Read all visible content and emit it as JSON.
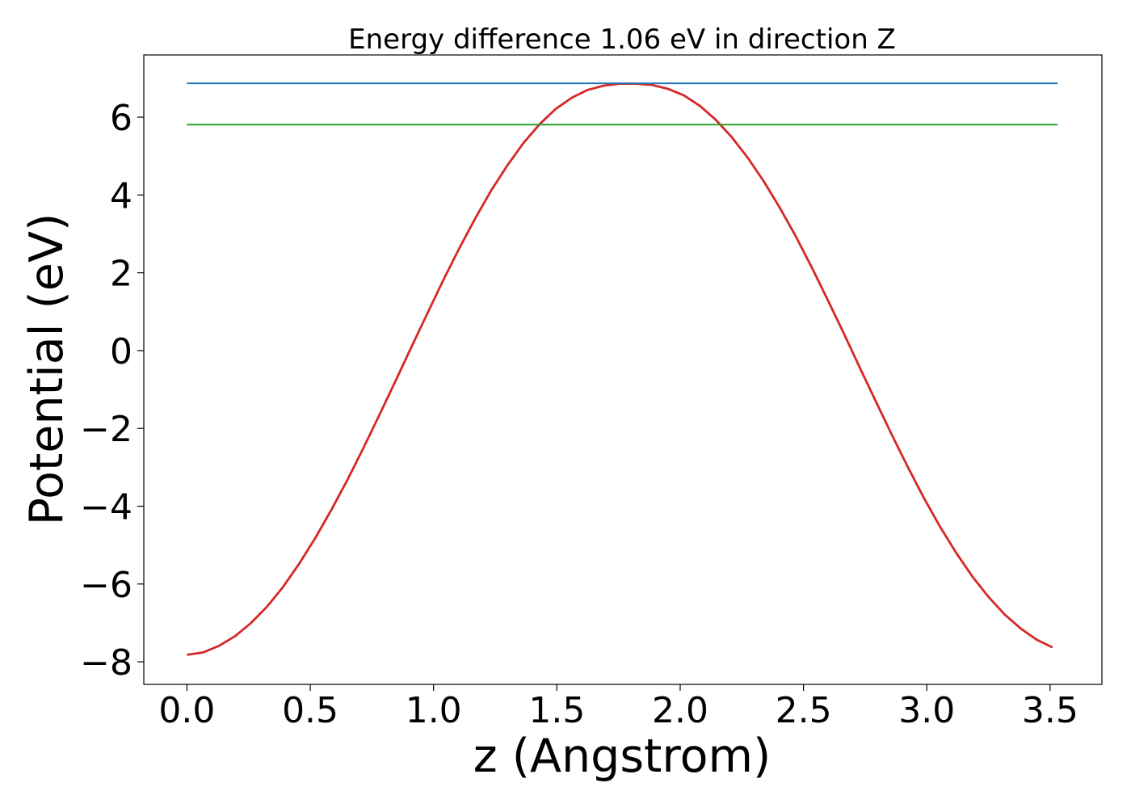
{
  "chart_data": {
    "type": "line",
    "title": "Energy difference 1.06 eV in direction Z",
    "xlabel": "z (Angstrom)",
    "ylabel": "Potential (eV)",
    "xlim": [
      -0.175,
      3.71
    ],
    "ylim": [
      -8.58,
      7.6
    ],
    "xticks": [
      0.0,
      0.5,
      1.0,
      1.5,
      2.0,
      2.5,
      3.0,
      3.5
    ],
    "xtick_labels": [
      "0.0",
      "0.5",
      "1.0",
      "1.5",
      "2.0",
      "2.5",
      "3.0",
      "3.5"
    ],
    "yticks": [
      -8,
      -6,
      -4,
      -2,
      0,
      2,
      4,
      6
    ],
    "ytick_labels": [
      "−8",
      "−6",
      "−4",
      "−2",
      "0",
      "2",
      "4",
      "6"
    ],
    "grid": false,
    "legend": "none",
    "series": [
      {
        "color": "#d62728",
        "x": [
          0.0,
          0.065,
          0.13,
          0.195,
          0.26,
          0.325,
          0.39,
          0.455,
          0.52,
          0.585,
          0.65,
          0.715,
          0.78,
          0.845,
          0.91,
          0.975,
          1.04,
          1.105,
          1.17,
          1.235,
          1.3,
          1.365,
          1.43,
          1.495,
          1.56,
          1.625,
          1.69,
          1.755,
          1.82,
          1.885,
          1.95,
          2.015,
          2.08,
          2.145,
          2.21,
          2.275,
          2.34,
          2.405,
          2.47,
          2.535,
          2.6,
          2.665,
          2.73,
          2.795,
          2.86,
          2.925,
          2.99,
          3.055,
          3.12,
          3.185,
          3.25,
          3.315,
          3.38,
          3.445,
          3.51
        ],
        "y": [
          -7.82,
          -7.76,
          -7.59,
          -7.34,
          -7.0,
          -6.58,
          -6.07,
          -5.48,
          -4.82,
          -4.1,
          -3.33,
          -2.51,
          -1.66,
          -0.79,
          0.09,
          0.96,
          1.82,
          2.64,
          3.41,
          4.13,
          4.77,
          5.34,
          5.82,
          6.21,
          6.5,
          6.7,
          6.81,
          6.86,
          6.86,
          6.83,
          6.73,
          6.56,
          6.29,
          5.93,
          5.48,
          4.95,
          4.34,
          3.66,
          2.92,
          2.12,
          1.28,
          0.42,
          -0.46,
          -1.33,
          -2.19,
          -3.02,
          -3.81,
          -4.54,
          -5.21,
          -5.81,
          -6.33,
          -6.78,
          -7.14,
          -7.43,
          -7.63
        ]
      },
      {
        "color": "#1f77b4",
        "x": [
          0.0,
          3.53
        ],
        "y": [
          6.87,
          6.87
        ]
      },
      {
        "color": "#2ca02c",
        "x": [
          0.0,
          3.53
        ],
        "y": [
          5.81,
          5.81
        ]
      }
    ]
  }
}
